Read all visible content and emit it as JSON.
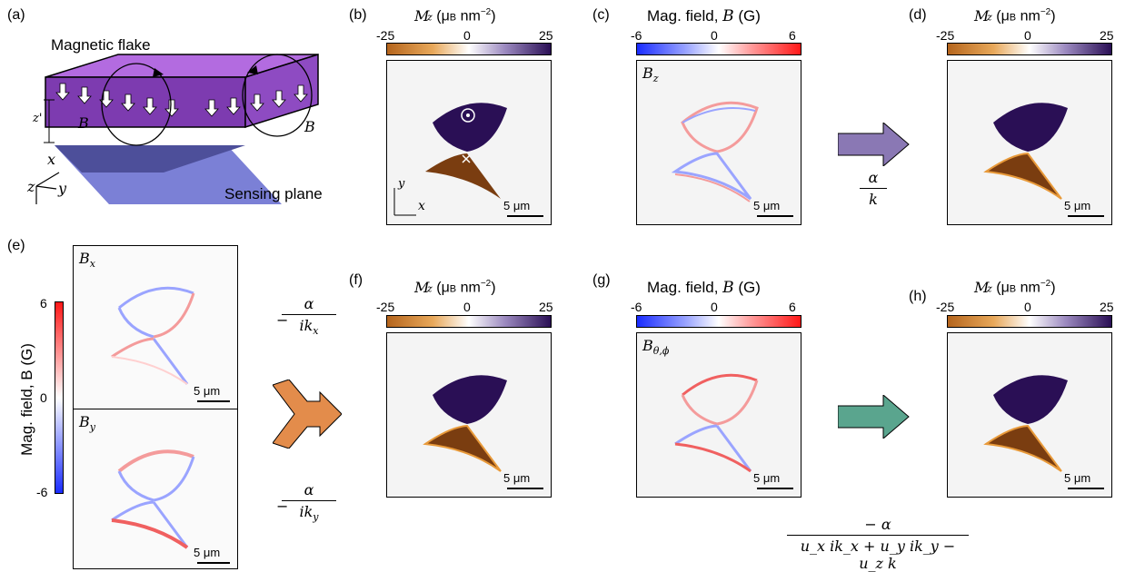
{
  "labels": {
    "a": "(a)",
    "b": "(b)",
    "c": "(c)",
    "d": "(d)",
    "e": "(e)",
    "f": "(f)",
    "g": "(g)",
    "h": "(h)"
  },
  "panel_a": {
    "flake": "Magnetic flake",
    "sensing": "Sensing plane",
    "B": "B",
    "zprime": "z'",
    "x": "x",
    "y": "y",
    "z": "z"
  },
  "mag_cbar": {
    "title": "M",
    "sub": "z",
    "unit_open": " (μ",
    "unit_sub": "B",
    "unit_close": " nm",
    "unit_sup": "−2",
    "unit_end": ")",
    "ticks": [
      "-25",
      "0",
      "25"
    ]
  },
  "field_cbar": {
    "title": "Mag. field, ",
    "B": "B",
    "unit": " (G)",
    "ticks": [
      "-6",
      "0",
      "6"
    ]
  },
  "scalebar": "5 μm",
  "panel_c_label": {
    "B": "B",
    "sub": "z"
  },
  "panel_e": {
    "bx": "B",
    "bx_sub": "x",
    "by": "B",
    "by_sub": "y",
    "axis": "Mag. field, B (G)",
    "ticks": [
      "6",
      "0",
      "-6"
    ]
  },
  "panel_g_label": {
    "B": "B",
    "sub": "θ,ϕ"
  },
  "operators": {
    "cd": {
      "num": "α",
      "den": "k"
    },
    "ef_x": {
      "num": "α",
      "den": "ik",
      "den_sub": "x",
      "sign": "−"
    },
    "ef_y": {
      "num": "α",
      "den": "ik",
      "den_sub": "y",
      "sign": "−"
    },
    "gh": {
      "num": "− α",
      "den": "u_x ik_x + u_y ik_y − u_z k"
    }
  },
  "colors": {
    "positive_mag": "#2a0f55",
    "negative_mag": "#7a3d10",
    "arrow_cd": "#8a78b4",
    "arrow_ef": "#e38c4b",
    "arrow_gh": "#5aa58e",
    "flake": "#8e44c8",
    "plane": "#6b6fcf"
  }
}
